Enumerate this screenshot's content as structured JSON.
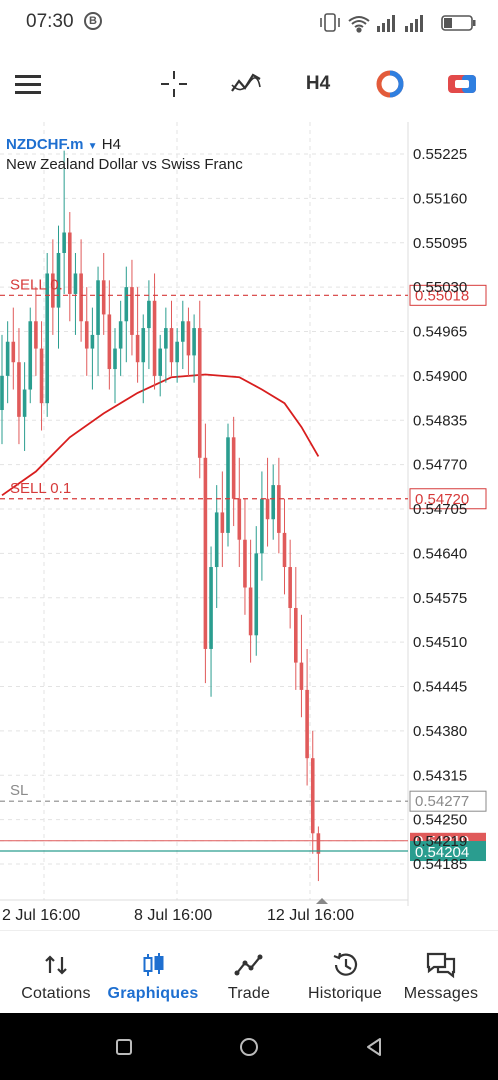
{
  "status_bar": {
    "time": "07:30",
    "b_badge": "B"
  },
  "toolbar": {
    "timeframe": "H4"
  },
  "chart": {
    "symbol": "NZDCHF.m",
    "timeframe": "H4",
    "description": "New Zealand Dollar vs Swiss Franc",
    "price_ticks": [
      "0.55225",
      "0.55160",
      "0.55095",
      "0.55030",
      "0.54965",
      "0.54900",
      "0.54835",
      "0.54770",
      "0.54705",
      "0.54640",
      "0.54575",
      "0.54510",
      "0.54445",
      "0.54380",
      "0.54315",
      "0.54250",
      "0.54219",
      "0.54185"
    ],
    "time_ticks": [
      "2 Jul 16:00",
      "8 Jul 16:00",
      "12 Jul 16:00"
    ],
    "lines": [
      {
        "label": "SELL 0.",
        "price": "0.55018",
        "color": "#d63a3a"
      },
      {
        "label": "SELL 0.1",
        "price": "0.54720",
        "color": "#d63a3a"
      },
      {
        "label": "SL",
        "price": "0.54277",
        "color": "#8a8a8a"
      }
    ],
    "bid_price": "0.54204",
    "ask_price": "0.54219",
    "colors": {
      "bull": "#2a9d8f",
      "bear": "#e05a5a",
      "ma": "#d81e1e",
      "bid": "#2a9d8f",
      "ask": "#e05a5a"
    }
  },
  "chart_data": {
    "type": "candlestick",
    "title": "NZDCHF.m H4",
    "ylim": [
      0.5415,
      0.5527
    ],
    "candles": [
      {
        "o": 0.5485,
        "h": 0.5496,
        "l": 0.548,
        "c": 0.549
      },
      {
        "o": 0.549,
        "h": 0.5498,
        "l": 0.5486,
        "c": 0.5495
      },
      {
        "o": 0.5495,
        "h": 0.55,
        "l": 0.5488,
        "c": 0.5492
      },
      {
        "o": 0.5492,
        "h": 0.5497,
        "l": 0.548,
        "c": 0.5484
      },
      {
        "o": 0.5484,
        "h": 0.5492,
        "l": 0.5479,
        "c": 0.5488
      },
      {
        "o": 0.5488,
        "h": 0.55,
        "l": 0.5486,
        "c": 0.5498
      },
      {
        "o": 0.5498,
        "h": 0.5503,
        "l": 0.549,
        "c": 0.5494
      },
      {
        "o": 0.5494,
        "h": 0.5498,
        "l": 0.5482,
        "c": 0.5486
      },
      {
        "o": 0.5486,
        "h": 0.5508,
        "l": 0.5484,
        "c": 0.5505
      },
      {
        "o": 0.5505,
        "h": 0.551,
        "l": 0.5496,
        "c": 0.55
      },
      {
        "o": 0.55,
        "h": 0.5512,
        "l": 0.5494,
        "c": 0.5508
      },
      {
        "o": 0.5508,
        "h": 0.5523,
        "l": 0.5502,
        "c": 0.5511
      },
      {
        "o": 0.5511,
        "h": 0.5514,
        "l": 0.5498,
        "c": 0.5502
      },
      {
        "o": 0.5502,
        "h": 0.5508,
        "l": 0.5496,
        "c": 0.5505
      },
      {
        "o": 0.5505,
        "h": 0.551,
        "l": 0.5495,
        "c": 0.5498
      },
      {
        "o": 0.5498,
        "h": 0.5503,
        "l": 0.549,
        "c": 0.5494
      },
      {
        "o": 0.5494,
        "h": 0.55,
        "l": 0.5488,
        "c": 0.5496
      },
      {
        "o": 0.5496,
        "h": 0.5506,
        "l": 0.549,
        "c": 0.5504
      },
      {
        "o": 0.5504,
        "h": 0.5508,
        "l": 0.5496,
        "c": 0.5499
      },
      {
        "o": 0.5499,
        "h": 0.5504,
        "l": 0.5488,
        "c": 0.5491
      },
      {
        "o": 0.5491,
        "h": 0.5497,
        "l": 0.5486,
        "c": 0.5494
      },
      {
        "o": 0.5494,
        "h": 0.5501,
        "l": 0.549,
        "c": 0.5498
      },
      {
        "o": 0.5498,
        "h": 0.5506,
        "l": 0.5492,
        "c": 0.5503
      },
      {
        "o": 0.5503,
        "h": 0.5507,
        "l": 0.5493,
        "c": 0.5496
      },
      {
        "o": 0.5496,
        "h": 0.5503,
        "l": 0.5489,
        "c": 0.5492
      },
      {
        "o": 0.5492,
        "h": 0.5499,
        "l": 0.5486,
        "c": 0.5497
      },
      {
        "o": 0.5497,
        "h": 0.5504,
        "l": 0.5491,
        "c": 0.5501
      },
      {
        "o": 0.5501,
        "h": 0.5505,
        "l": 0.5488,
        "c": 0.549
      },
      {
        "o": 0.549,
        "h": 0.5496,
        "l": 0.5487,
        "c": 0.5494
      },
      {
        "o": 0.5494,
        "h": 0.55,
        "l": 0.5489,
        "c": 0.5497
      },
      {
        "o": 0.5497,
        "h": 0.5501,
        "l": 0.549,
        "c": 0.5492
      },
      {
        "o": 0.5492,
        "h": 0.5497,
        "l": 0.5489,
        "c": 0.5495
      },
      {
        "o": 0.5495,
        "h": 0.5501,
        "l": 0.5491,
        "c": 0.5498
      },
      {
        "o": 0.5498,
        "h": 0.55,
        "l": 0.549,
        "c": 0.5493
      },
      {
        "o": 0.5493,
        "h": 0.5499,
        "l": 0.5489,
        "c": 0.5497
      },
      {
        "o": 0.5497,
        "h": 0.5501,
        "l": 0.5475,
        "c": 0.5478
      },
      {
        "o": 0.5478,
        "h": 0.5483,
        "l": 0.5445,
        "c": 0.545
      },
      {
        "o": 0.545,
        "h": 0.5465,
        "l": 0.5443,
        "c": 0.5462
      },
      {
        "o": 0.5462,
        "h": 0.5474,
        "l": 0.5456,
        "c": 0.547
      },
      {
        "o": 0.547,
        "h": 0.5476,
        "l": 0.5462,
        "c": 0.5467
      },
      {
        "o": 0.5467,
        "h": 0.5483,
        "l": 0.5465,
        "c": 0.5481
      },
      {
        "o": 0.5481,
        "h": 0.5484,
        "l": 0.5468,
        "c": 0.5472
      },
      {
        "o": 0.5472,
        "h": 0.5478,
        "l": 0.5462,
        "c": 0.5466
      },
      {
        "o": 0.5466,
        "h": 0.5472,
        "l": 0.5455,
        "c": 0.5459
      },
      {
        "o": 0.5459,
        "h": 0.5466,
        "l": 0.5448,
        "c": 0.5452
      },
      {
        "o": 0.5452,
        "h": 0.5468,
        "l": 0.5449,
        "c": 0.5464
      },
      {
        "o": 0.5464,
        "h": 0.5476,
        "l": 0.546,
        "c": 0.5472
      },
      {
        "o": 0.5472,
        "h": 0.5478,
        "l": 0.5465,
        "c": 0.5469
      },
      {
        "o": 0.5469,
        "h": 0.5477,
        "l": 0.5466,
        "c": 0.5474
      },
      {
        "o": 0.5474,
        "h": 0.5478,
        "l": 0.5464,
        "c": 0.5467
      },
      {
        "o": 0.5467,
        "h": 0.5472,
        "l": 0.5458,
        "c": 0.5462
      },
      {
        "o": 0.5462,
        "h": 0.5466,
        "l": 0.5453,
        "c": 0.5456
      },
      {
        "o": 0.5456,
        "h": 0.5462,
        "l": 0.5444,
        "c": 0.5448
      },
      {
        "o": 0.5448,
        "h": 0.5455,
        "l": 0.544,
        "c": 0.5444
      },
      {
        "o": 0.5444,
        "h": 0.545,
        "l": 0.543,
        "c": 0.5434
      },
      {
        "o": 0.5434,
        "h": 0.5438,
        "l": 0.542,
        "c": 0.5423
      },
      {
        "o": 0.5423,
        "h": 0.5424,
        "l": 0.5416,
        "c": 0.542
      }
    ],
    "moving_average": [
      {
        "i": 0,
        "v": 0.54725
      },
      {
        "i": 6,
        "v": 0.5476
      },
      {
        "i": 12,
        "v": 0.5481
      },
      {
        "i": 18,
        "v": 0.54845
      },
      {
        "i": 24,
        "v": 0.54875
      },
      {
        "i": 30,
        "v": 0.54898
      },
      {
        "i": 36,
        "v": 0.54902
      },
      {
        "i": 42,
        "v": 0.54898
      },
      {
        "i": 46,
        "v": 0.5488
      },
      {
        "i": 50,
        "v": 0.5486
      },
      {
        "i": 53,
        "v": 0.54825
      },
      {
        "i": 56,
        "v": 0.54782
      }
    ]
  },
  "bottom_nav": [
    {
      "label": "Cotations",
      "icon": "quotes-icon",
      "active": false
    },
    {
      "label": "Graphiques",
      "icon": "charts-icon",
      "active": true
    },
    {
      "label": "Trade",
      "icon": "trade-icon",
      "active": false
    },
    {
      "label": "Historique",
      "icon": "history-icon",
      "active": false
    },
    {
      "label": "Messages",
      "icon": "messages-icon",
      "active": false
    }
  ]
}
